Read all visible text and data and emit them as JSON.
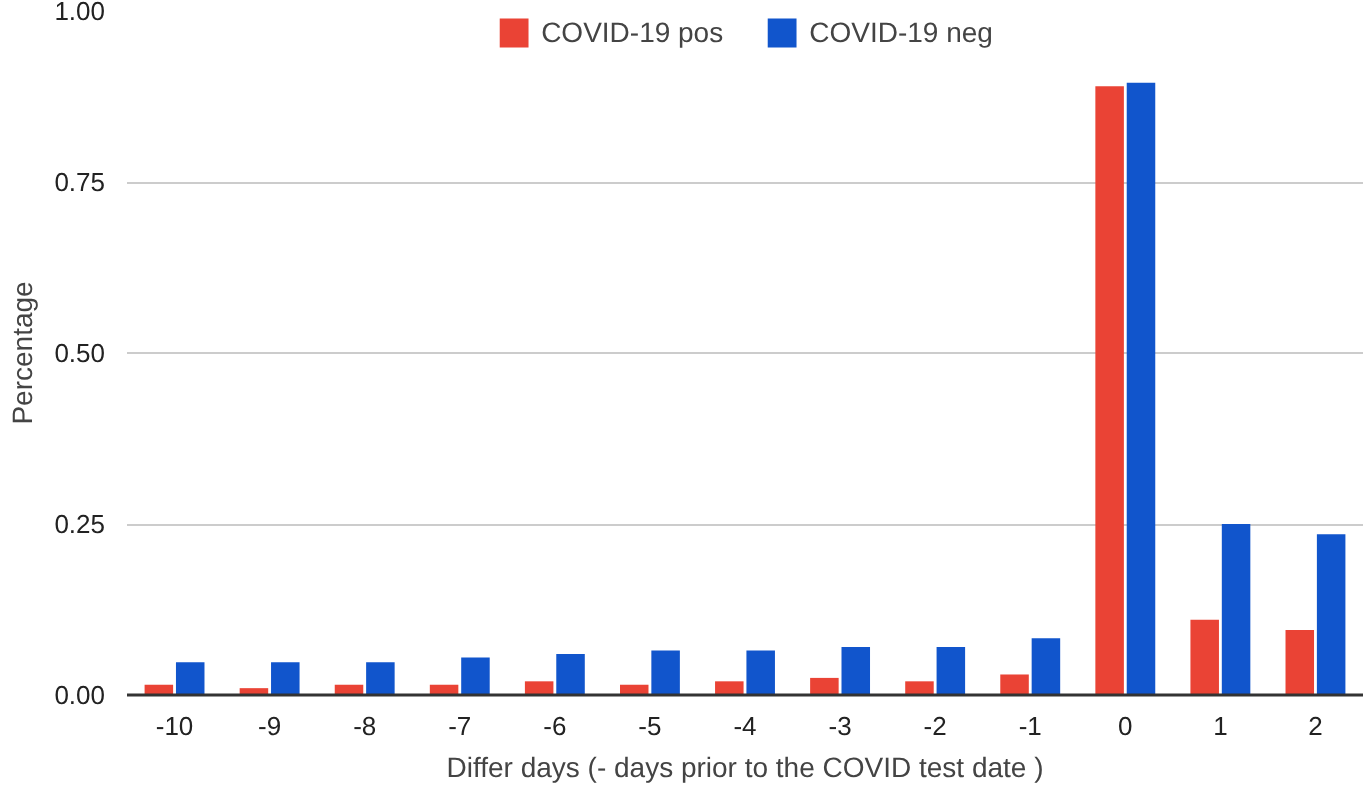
{
  "chart_data": {
    "type": "bar",
    "xlabel": "Differ days (- days prior to the COVID test date )",
    "ylabel": "Percentage",
    "categories": [
      "-10",
      "-9",
      "-8",
      "-7",
      "-6",
      "-5",
      "-4",
      "-3",
      "-2",
      "-1",
      "0",
      "1",
      "2"
    ],
    "series": [
      {
        "name": "COVID-19 pos",
        "color": "#ea4335",
        "values": [
          0.015,
          0.01,
          0.015,
          0.015,
          0.02,
          0.015,
          0.02,
          0.025,
          0.02,
          0.03,
          0.89,
          0.11,
          0.095
        ]
      },
      {
        "name": "COVID-19 neg",
        "color": "#1155cc",
        "values": [
          0.048,
          0.048,
          0.048,
          0.055,
          0.06,
          0.065,
          0.065,
          0.07,
          0.07,
          0.083,
          0.895,
          0.25,
          0.235
        ]
      }
    ],
    "ylim": [
      0,
      1.0
    ],
    "yticks": [
      {
        "value": 0,
        "label": "0.00"
      },
      {
        "value": 0.25,
        "label": "0.25"
      },
      {
        "value": 0.5,
        "label": "0.50"
      },
      {
        "value": 0.75,
        "label": "0.75"
      },
      {
        "value": 1.0,
        "label": "1.00"
      }
    ],
    "grid": "y",
    "legend": "top"
  }
}
